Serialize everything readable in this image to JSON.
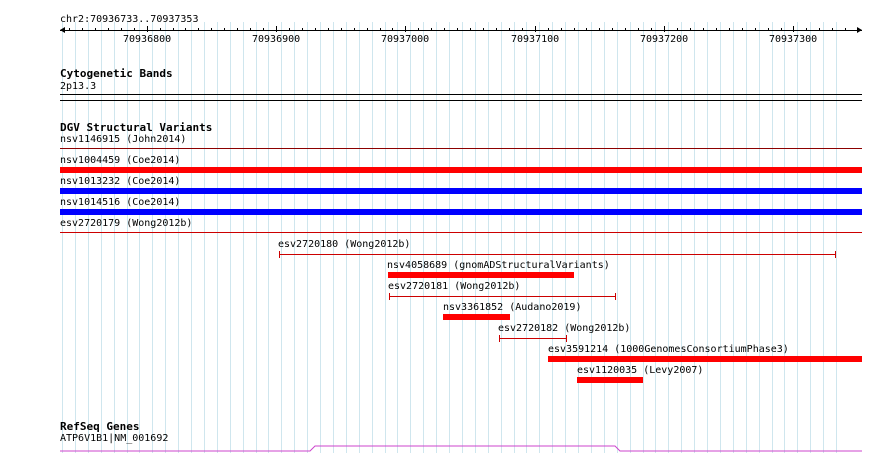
{
  "ruler": {
    "locus": "chr2:70936733..70937353",
    "ticks": [
      "70936800",
      "70936900",
      "70937000",
      "70937100",
      "70937200",
      "70937300"
    ]
  },
  "cytoband": {
    "title": "Cytogenetic Bands",
    "band": "2p13.3"
  },
  "dgv": {
    "title": "DGV Structural Variants",
    "rows": [
      {
        "label": "nsv1146915 (John2014)",
        "color": "#8b0000"
      },
      {
        "label": "nsv1004459 (Coe2014)",
        "color": "#ff0000"
      },
      {
        "label": "nsv1013232 (Coe2014)",
        "color": "#0000ff"
      },
      {
        "label": "nsv1014516 (Coe2014)",
        "color": "#0000ff"
      },
      {
        "label": "esv2720179 (Wong2012b)",
        "color": "#cc0000"
      }
    ],
    "features": [
      {
        "label": "esv2720180 (Wong2012b)",
        "color": "#cc0000",
        "kind": "range"
      },
      {
        "label": "nsv4058689 (gnomADStructuralVariants)",
        "color": "#ff0000",
        "kind": "bar"
      },
      {
        "label": "esv2720181 (Wong2012b)",
        "color": "#cc0000",
        "kind": "range"
      },
      {
        "label": "nsv3361852 (Audano2019)",
        "color": "#ff0000",
        "kind": "bar"
      },
      {
        "label": "esv2720182 (Wong2012b)",
        "color": "#cc0000",
        "kind": "range"
      },
      {
        "label": "esv3591214 (1000GenomesConsortiumPhase3)",
        "color": "#ff0000",
        "kind": "bar"
      },
      {
        "label": "esv1120035 (Levy2007)",
        "color": "#ff0000",
        "kind": "bar"
      }
    ]
  },
  "refseq": {
    "title": "RefSeq Genes",
    "gene": "ATP6V1B1|NM_001692",
    "color": "#cc44cc"
  }
}
